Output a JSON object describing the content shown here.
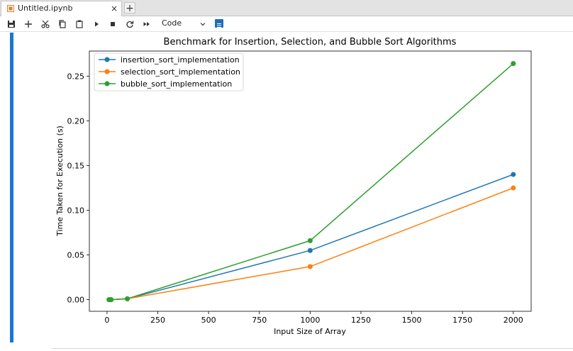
{
  "tab": {
    "title": "Untitled.ipynb",
    "close": "×",
    "new": "+"
  },
  "toolbar": {
    "buttons": [
      "save-icon",
      "add-icon",
      "cut-icon",
      "copy-icon",
      "paste-icon",
      "run-icon",
      "stop-icon",
      "restart-icon",
      "fast-forward-icon"
    ],
    "cell_type": "Code"
  },
  "colors": {
    "insertion": "#1f77b4",
    "selection": "#ff7f0e",
    "bubble": "#2ca02c",
    "accent": "#1976d2"
  },
  "chart_data": {
    "type": "line",
    "title": "Benchmark for Insertion, Selection, and Bubble Sort Algorithms",
    "xlabel": "Input Size of Array",
    "ylabel": "Time Taken for Execution (s)",
    "xlim": [
      -87,
      2088
    ],
    "ylim": [
      -0.013,
      0.278
    ],
    "xticks": [
      0,
      250,
      500,
      750,
      1000,
      1250,
      1500,
      1750,
      2000
    ],
    "yticks": [
      0.0,
      0.05,
      0.1,
      0.15,
      0.2,
      0.25
    ],
    "xtick_labels": [
      "0",
      "250",
      "500",
      "750",
      "1000",
      "1250",
      "1500",
      "1750",
      "2000"
    ],
    "ytick_labels": [
      "0.00",
      "0.05",
      "0.10",
      "0.15",
      "0.20",
      "0.25"
    ],
    "x": [
      10,
      20,
      100,
      1000,
      2000
    ],
    "legend_position": "top-left",
    "grid": false,
    "series": [
      {
        "name": "insertion_sort_implementation",
        "values": [
          0.0,
          0.0,
          0.001,
          0.055,
          0.14
        ]
      },
      {
        "name": "selection_sort_implementation",
        "values": [
          0.0,
          0.0,
          0.001,
          0.037,
          0.125
        ]
      },
      {
        "name": "bubble_sort_implementation",
        "values": [
          0.0,
          0.0,
          0.001,
          0.066,
          0.264
        ]
      }
    ]
  }
}
